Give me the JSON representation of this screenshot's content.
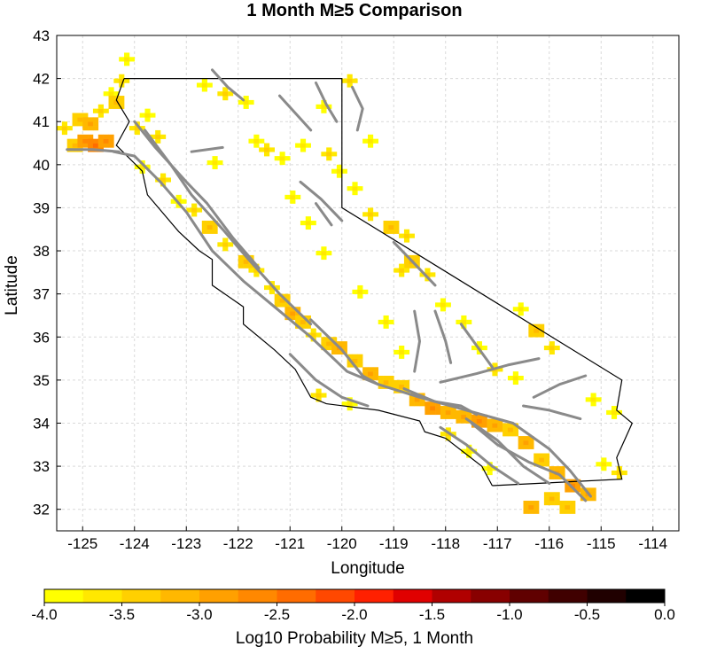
{
  "title": "1 Month M≥5 Comparison",
  "x_axis": {
    "label": "Longitude",
    "range": [
      -125.5,
      -113.5
    ],
    "ticks": [
      -125,
      -124,
      -123,
      -122,
      -121,
      -120,
      -119,
      -118,
      -117,
      -116,
      -115,
      -114
    ]
  },
  "y_axis": {
    "label": "Latitude",
    "range": [
      31.5,
      43
    ],
    "ticks": [
      32,
      33,
      34,
      35,
      36,
      37,
      38,
      39,
      40,
      41,
      42,
      43
    ]
  },
  "colorbar": {
    "label": "Log10 Probability M≥5, 1 Month",
    "ticks": [
      "-4.0",
      "-3.5",
      "-3.0",
      "-2.5",
      "-2.0",
      "-1.5",
      "-1.0",
      "-0.5",
      "0.0"
    ],
    "colors": [
      "#ffff00",
      "#ffe800",
      "#ffd000",
      "#ffb800",
      "#ffa000",
      "#ff8800",
      "#ff6c00",
      "#ff4800",
      "#ff2000",
      "#e00000",
      "#b00000",
      "#880000",
      "#600000",
      "#400000",
      "#200000",
      "#000000"
    ]
  },
  "colors": {
    "faults": "#8a8a8a",
    "boundary": "#000000",
    "grid": "#d9d9d9",
    "low_probability": "#ffff00",
    "high_probability": "#ff8c00"
  },
  "map": {
    "region": "California",
    "layers": [
      "forecast-probability-grid",
      "fault-traces",
      "state-boundary",
      "coastline"
    ],
    "state_boundary": [
      [
        -124.2,
        42.0
      ],
      [
        -120.0,
        42.0
      ],
      [
        -120.0,
        39.0
      ],
      [
        -114.6,
        35.0
      ],
      [
        -114.7,
        34.3
      ],
      [
        -114.4,
        34.0
      ],
      [
        -114.7,
        33.2
      ],
      [
        -114.6,
        32.7
      ],
      [
        -117.1,
        32.55
      ]
    ],
    "coastline": [
      [
        -124.2,
        42.0
      ],
      [
        -124.35,
        41.5
      ],
      [
        -124.1,
        41.0
      ],
      [
        -124.35,
        40.45
      ],
      [
        -123.85,
        39.85
      ],
      [
        -123.75,
        39.3
      ],
      [
        -123.15,
        38.45
      ],
      [
        -122.75,
        38.0
      ],
      [
        -122.5,
        37.8
      ],
      [
        -122.5,
        37.2
      ],
      [
        -121.9,
        36.7
      ],
      [
        -121.9,
        36.3
      ],
      [
        -121.3,
        35.7
      ],
      [
        -120.9,
        35.25
      ],
      [
        -120.6,
        34.6
      ],
      [
        -120.3,
        34.45
      ],
      [
        -119.3,
        34.3
      ],
      [
        -118.5,
        34.05
      ],
      [
        -118.4,
        33.8
      ],
      [
        -118.0,
        33.65
      ],
      [
        -117.3,
        33.0
      ],
      [
        -117.1,
        32.55
      ]
    ],
    "fault_traces": [
      [
        [
          -124.4,
          40.3
        ],
        [
          -124.0,
          40.2
        ],
        [
          -123.5,
          39.6
        ],
        [
          -123.0,
          38.9
        ],
        [
          -122.5,
          38.0
        ],
        [
          -121.9,
          37.3
        ],
        [
          -121.3,
          36.7
        ],
        [
          -120.6,
          36.0
        ],
        [
          -119.9,
          35.2
        ],
        [
          -119.3,
          34.9
        ],
        [
          -118.5,
          34.6
        ],
        [
          -117.6,
          34.3
        ],
        [
          -116.7,
          34.0
        ],
        [
          -116.0,
          33.4
        ],
        [
          -115.6,
          32.9
        ],
        [
          -115.2,
          32.3
        ]
      ],
      [
        [
          -125.3,
          40.35
        ],
        [
          -124.8,
          40.35
        ],
        [
          -124.3,
          40.3
        ]
      ],
      [
        [
          -123.8,
          40.8
        ],
        [
          -123.3,
          40.0
        ],
        [
          -122.9,
          39.3
        ],
        [
          -122.3,
          38.5
        ],
        [
          -121.8,
          37.8
        ],
        [
          -121.2,
          37.0
        ],
        [
          -120.6,
          36.3
        ]
      ],
      [
        [
          -124.0,
          41.0
        ],
        [
          -123.6,
          40.4
        ],
        [
          -123.0,
          39.6
        ],
        [
          -122.6,
          39.1
        ],
        [
          -122.1,
          38.3
        ],
        [
          -121.6,
          37.6
        ]
      ],
      [
        [
          -120.6,
          36.4
        ],
        [
          -120.0,
          35.7
        ],
        [
          -119.6,
          35.1
        ],
        [
          -119.3,
          34.9
        ]
      ],
      [
        [
          -121.0,
          35.6
        ],
        [
          -120.5,
          35.0
        ],
        [
          -120.0,
          34.6
        ],
        [
          -119.5,
          34.4
        ]
      ],
      [
        [
          -118.8,
          34.8
        ],
        [
          -118.2,
          34.5
        ],
        [
          -117.7,
          34.4
        ],
        [
          -117.4,
          34.2
        ]
      ],
      [
        [
          -118.1,
          34.95
        ],
        [
          -117.4,
          35.15
        ],
        [
          -116.8,
          35.35
        ],
        [
          -116.2,
          35.5
        ]
      ],
      [
        [
          -117.6,
          34.1
        ],
        [
          -117.0,
          33.6
        ],
        [
          -116.5,
          33.0
        ],
        [
          -116.0,
          32.6
        ]
      ],
      [
        [
          -118.1,
          33.9
        ],
        [
          -117.6,
          33.5
        ],
        [
          -117.1,
          33.0
        ],
        [
          -116.6,
          32.6
        ]
      ],
      [
        [
          -117.5,
          34.0
        ],
        [
          -117.0,
          33.5
        ],
        [
          -116.4,
          33.1
        ],
        [
          -115.8,
          32.8
        ],
        [
          -115.3,
          32.2
        ]
      ],
      [
        [
          -118.2,
          36.6
        ],
        [
          -118.0,
          35.9
        ],
        [
          -117.9,
          35.4
        ]
      ],
      [
        [
          -117.7,
          36.3
        ],
        [
          -117.4,
          35.8
        ],
        [
          -117.1,
          35.3
        ]
      ],
      [
        [
          -119.0,
          38.2
        ],
        [
          -118.6,
          37.7
        ],
        [
          -118.2,
          37.2
        ]
      ],
      [
        [
          -118.6,
          36.6
        ],
        [
          -118.5,
          35.9
        ],
        [
          -118.6,
          35.2
        ]
      ],
      [
        [
          -120.5,
          41.9
        ],
        [
          -120.3,
          41.4
        ],
        [
          -120.1,
          41.0
        ]
      ],
      [
        [
          -121.2,
          41.6
        ],
        [
          -120.9,
          41.2
        ],
        [
          -120.6,
          40.8
        ]
      ],
      [
        [
          -122.5,
          42.2
        ],
        [
          -122.2,
          41.8
        ],
        [
          -121.9,
          41.5
        ]
      ],
      [
        [
          -119.8,
          41.8
        ],
        [
          -119.6,
          41.3
        ],
        [
          -119.7,
          40.8
        ]
      ],
      [
        [
          -120.8,
          39.6
        ],
        [
          -120.4,
          39.2
        ],
        [
          -120.0,
          38.7
        ]
      ],
      [
        [
          -122.9,
          40.3
        ],
        [
          -122.3,
          40.4
        ]
      ],
      [
        [
          -120.5,
          39.1
        ],
        [
          -120.2,
          38.6
        ]
      ],
      [
        [
          -116.5,
          34.4
        ],
        [
          -116.0,
          34.3
        ],
        [
          -115.4,
          34.1
        ]
      ],
      [
        [
          -116.3,
          34.6
        ],
        [
          -115.8,
          34.9
        ],
        [
          -115.3,
          35.1
        ]
      ]
    ],
    "forecast_cells": [
      [
        -125.2,
        40.4,
        3
      ],
      [
        -125.0,
        40.5,
        5
      ],
      [
        -124.8,
        40.4,
        6
      ],
      [
        -124.6,
        40.5,
        5
      ],
      [
        -125.4,
        40.8,
        2
      ],
      [
        -125.1,
        41.0,
        3
      ],
      [
        -124.9,
        40.9,
        4
      ],
      [
        -124.7,
        41.2,
        2
      ],
      [
        -124.5,
        41.6,
        1
      ],
      [
        -124.3,
        41.9,
        2
      ],
      [
        -124.2,
        42.4,
        1
      ],
      [
        -124.4,
        41.4,
        3
      ],
      [
        -124.0,
        40.8,
        2
      ],
      [
        -123.8,
        41.1,
        1
      ],
      [
        -123.6,
        40.6,
        2
      ],
      [
        -123.9,
        39.9,
        1
      ],
      [
        -123.5,
        39.6,
        2
      ],
      [
        -123.2,
        39.1,
        1
      ],
      [
        -122.9,
        38.9,
        2
      ],
      [
        -122.6,
        38.5,
        3
      ],
      [
        -122.3,
        38.1,
        2
      ],
      [
        -121.9,
        37.7,
        3
      ],
      [
        -121.7,
        37.5,
        2
      ],
      [
        -121.4,
        37.1,
        2
      ],
      [
        -121.2,
        36.8,
        3
      ],
      [
        -121.0,
        36.5,
        4
      ],
      [
        -120.8,
        36.3,
        3
      ],
      [
        -120.6,
        36.0,
        2
      ],
      [
        -120.3,
        35.8,
        3
      ],
      [
        -120.1,
        35.7,
        4
      ],
      [
        -119.8,
        35.4,
        3
      ],
      [
        -119.5,
        35.1,
        4
      ],
      [
        -119.2,
        34.9,
        3
      ],
      [
        -118.9,
        34.8,
        3
      ],
      [
        -118.6,
        34.5,
        4
      ],
      [
        -118.3,
        34.3,
        5
      ],
      [
        -118.0,
        34.2,
        4
      ],
      [
        -117.7,
        34.1,
        4
      ],
      [
        -117.4,
        34.0,
        5
      ],
      [
        -117.1,
        33.9,
        4
      ],
      [
        -116.8,
        33.8,
        3
      ],
      [
        -116.5,
        33.5,
        4
      ],
      [
        -116.2,
        33.1,
        3
      ],
      [
        -115.9,
        32.8,
        4
      ],
      [
        -115.6,
        32.5,
        5
      ],
      [
        -115.3,
        32.3,
        4
      ],
      [
        -116.0,
        32.2,
        3
      ],
      [
        -116.4,
        32.0,
        4
      ],
      [
        -115.7,
        32.0,
        3
      ],
      [
        -121.5,
        40.3,
        2
      ],
      [
        -121.2,
        40.1,
        1
      ],
      [
        -121.7,
        40.5,
        1
      ],
      [
        -122.5,
        40.0,
        1
      ],
      [
        -120.8,
        40.4,
        1
      ],
      [
        -120.3,
        40.2,
        2
      ],
      [
        -120.1,
        39.8,
        1
      ],
      [
        -119.8,
        39.4,
        1
      ],
      [
        -119.5,
        38.8,
        2
      ],
      [
        -119.1,
        38.5,
        3
      ],
      [
        -118.8,
        38.3,
        2
      ],
      [
        -118.7,
        37.7,
        3
      ],
      [
        -118.9,
        37.5,
        2
      ],
      [
        -118.4,
        37.4,
        2
      ],
      [
        -118.1,
        36.7,
        1
      ],
      [
        -117.7,
        36.3,
        1
      ],
      [
        -117.4,
        35.7,
        1
      ],
      [
        -117.1,
        35.2,
        2
      ],
      [
        -116.7,
        35.0,
        1
      ],
      [
        -116.3,
        36.1,
        3
      ],
      [
        -116.0,
        35.7,
        2
      ],
      [
        -116.6,
        36.6,
        1
      ],
      [
        -122.7,
        41.8,
        1
      ],
      [
        -122.3,
        41.6,
        2
      ],
      [
        -121.9,
        41.4,
        1
      ],
      [
        -120.4,
        41.3,
        1
      ],
      [
        -119.9,
        41.9,
        2
      ],
      [
        -119.5,
        40.5,
        1
      ],
      [
        -121.0,
        39.2,
        1
      ],
      [
        -120.7,
        38.6,
        1
      ],
      [
        -120.4,
        37.9,
        1
      ],
      [
        -119.7,
        37.0,
        1
      ],
      [
        -119.2,
        36.3,
        1
      ],
      [
        -118.9,
        35.6,
        1
      ],
      [
        -120.5,
        34.6,
        2
      ],
      [
        -119.9,
        34.4,
        1
      ],
      [
        -118.0,
        33.7,
        2
      ],
      [
        -117.6,
        33.3,
        1
      ],
      [
        -117.2,
        32.9,
        1
      ],
      [
        -115.0,
        33.0,
        1
      ],
      [
        -114.7,
        32.8,
        2
      ],
      [
        -115.2,
        34.5,
        1
      ],
      [
        -114.8,
        34.2,
        1
      ]
    ]
  }
}
